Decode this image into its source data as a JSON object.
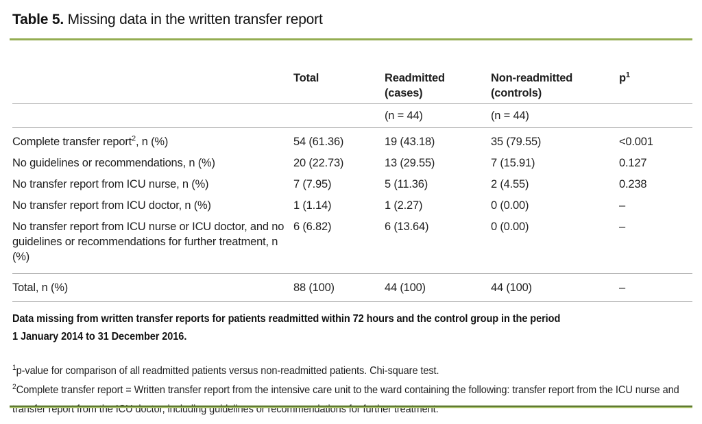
{
  "colors": {
    "green_rule": "#94ad52",
    "green_rule_dark": "#5f7a33",
    "green_rule_light": "#a9c169",
    "gray_line": "#a6a6a6",
    "text": "#1f1f1f"
  },
  "title": {
    "bold": "Table 5.",
    "rest": " Missing data in the written transfer report"
  },
  "table": {
    "header": {
      "label": "",
      "total": "Total",
      "cases_line1": "Readmitted",
      "cases_line2": "(cases)",
      "controls_line1": "Non-readmitted",
      "controls_line2": "(controls)",
      "p_base": "p",
      "p_sup": "1",
      "sub_cases": "(n = 44)",
      "sub_controls": "(n = 44)"
    },
    "rows": [
      {
        "label": "Complete transfer report",
        "label_sup": "2",
        "label_suffix": ", n (%)",
        "total": "54 (61.36)",
        "cases": "19 (43.18)",
        "controls": "35 (79.55)",
        "p": "<0.001"
      },
      {
        "label": "No guidelines or recommendations, n (%)",
        "label_sup": "",
        "label_suffix": "",
        "total": "20 (22.73)",
        "cases": "13 (29.55)",
        "controls": "7 (15.91)",
        "p": "0.127"
      },
      {
        "label": "No transfer report from ICU nurse, n (%)",
        "label_sup": "",
        "label_suffix": "",
        "total": "7 (7.95)",
        "cases": "5 (11.36)",
        "controls": "2 (4.55)",
        "p": "0.238"
      },
      {
        "label": "No transfer report from ICU doctor, n (%)",
        "label_sup": "",
        "label_suffix": "",
        "total": "1 (1.14)",
        "cases": "1 (2.27)",
        "controls": "0 (0.00)",
        "p": "–"
      },
      {
        "label": "No transfer report from ICU nurse or ICU doctor, and no guidelines or recommendations for further treatment, n (%)",
        "label_sup": "",
        "label_suffix": "",
        "total": "6 (6.82)",
        "cases": "6 (13.64)",
        "controls": "0 (0.00)",
        "p": "–"
      }
    ],
    "total_row": {
      "label": "Total, n (%)",
      "total": "88 (100)",
      "cases": "44 (100)",
      "controls": "44 (100)",
      "p": "–"
    }
  },
  "caption": {
    "line1": "Data missing from written transfer reports for patients readmitted within 72 hours and the control group in the period",
    "line2": "1 January 2014 to 31 December 2016."
  },
  "footnotes": [
    {
      "sup": "1",
      "text": "p-value for comparison of all readmitted patients versus non-readmitted patients. Chi-square test."
    },
    {
      "sup": "2",
      "text": "Complete transfer report = Written transfer report from the intensive care unit to the ward containing the following: transfer report from the ICU nurse and transfer report from the ICU doctor, including guidelines or recommendations for further treatment."
    }
  ]
}
